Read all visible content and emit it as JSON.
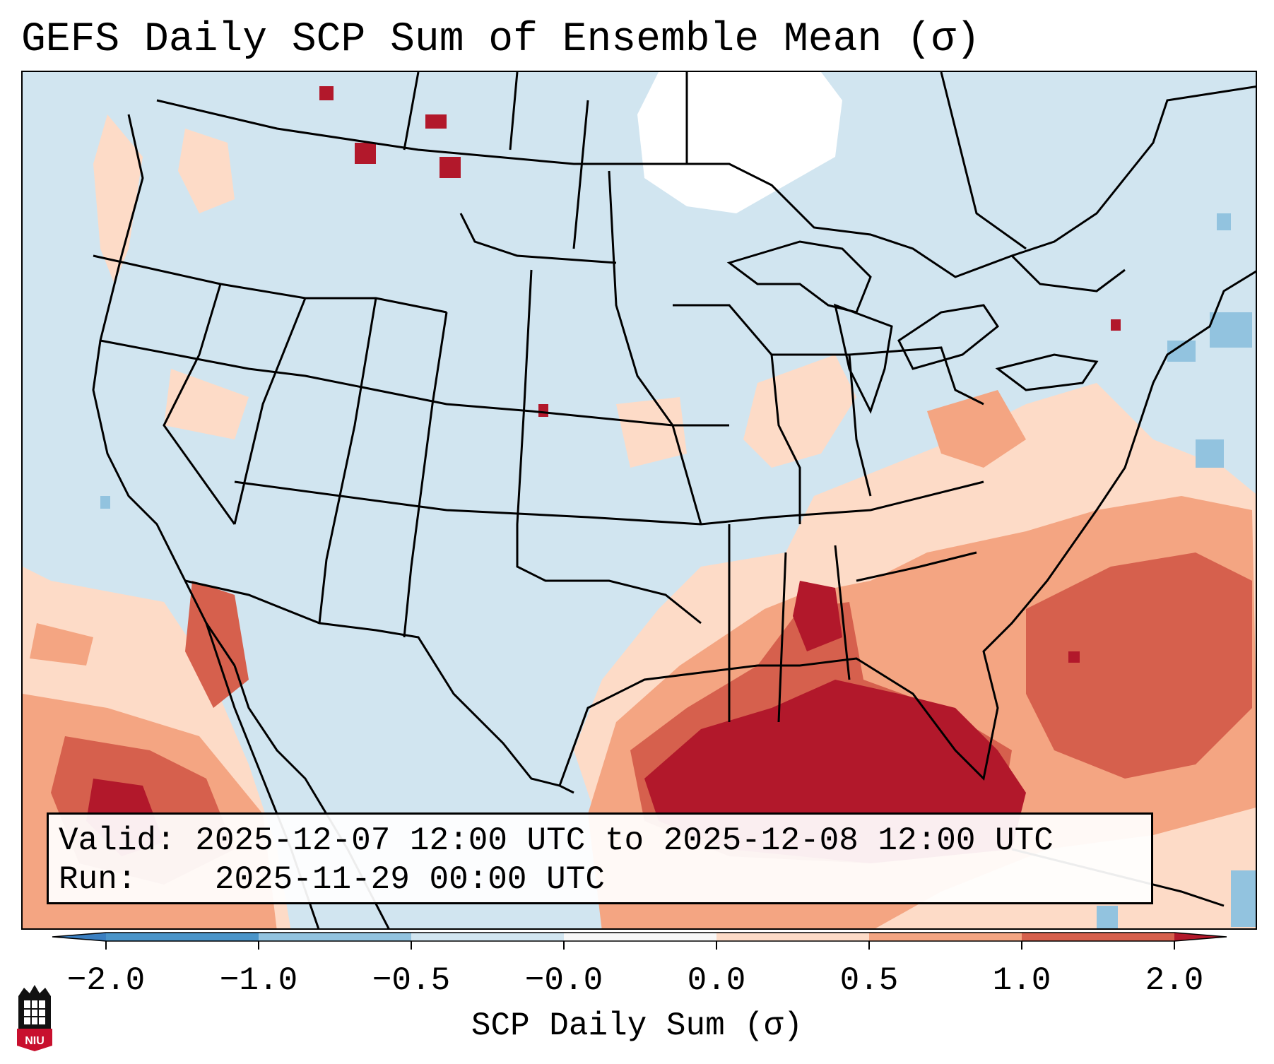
{
  "title": "GEFS Daily SCP Sum of Ensemble Mean (σ)",
  "info": {
    "valid_label": "Valid:",
    "valid_value": "2025-12-07 12:00 UTC to 2025-12-08 12:00 UTC",
    "run_label": "Run:",
    "run_value": "2025-11-29 00:00 UTC"
  },
  "colorbar": {
    "label": "SCP Daily Sum (σ)",
    "ticks": [
      "−2.0",
      "−1.0",
      "−0.5",
      "−0.0",
      "0.0",
      "0.5",
      "1.0",
      "2.0"
    ],
    "colors": {
      "below_min": "#3a7fc1",
      "neg_2_to_1": "#4a94c8",
      "neg_1_to_05": "#92c3df",
      "neg_05_to_0": "#d1e5f0",
      "zero": "#f7f7f7",
      "pos_0_to_05": "#fddbc7",
      "pos_05_to_1": "#f4a582",
      "pos_1_to_2": "#d6604d",
      "above_max": "#b2182b"
    }
  },
  "logo": {
    "text": "NIU"
  }
}
